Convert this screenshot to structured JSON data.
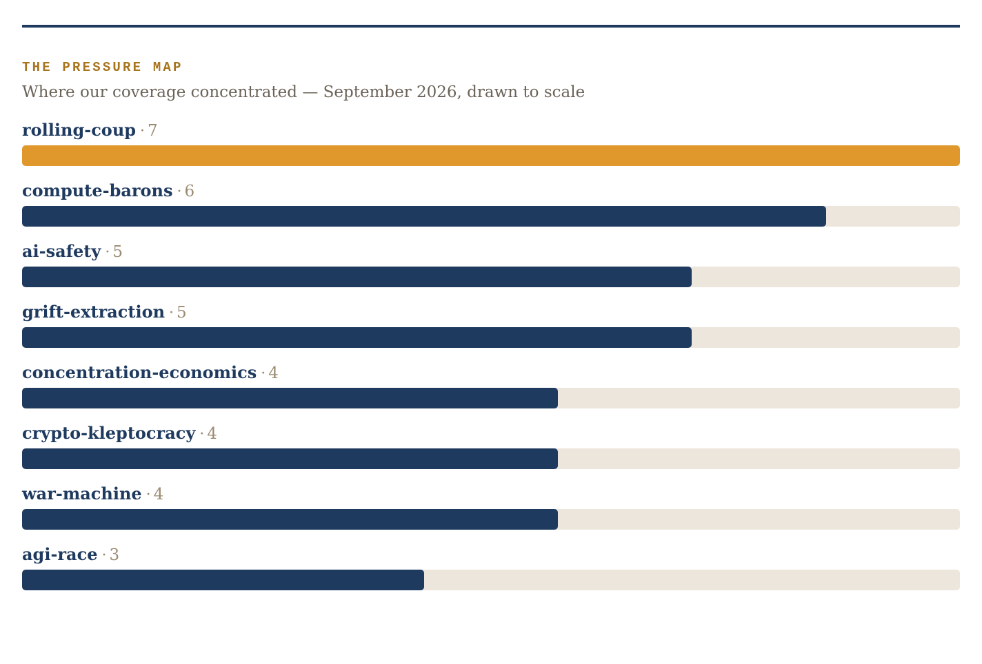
{
  "header": {
    "kicker": "THE PRESSURE MAP",
    "subtitle": "Where our coverage concentrated — September 2026, drawn to scale"
  },
  "colors": {
    "rule": "#1f3a5f",
    "kicker": "#a8741c",
    "bar_default": "#1f3a5f",
    "bar_highlight": "#e0982c",
    "track": "#ede6dc",
    "count": "#9a8a70"
  },
  "chart_data": {
    "type": "bar",
    "orientation": "horizontal",
    "title": "THE PRESSURE MAP",
    "subtitle": "Where our coverage concentrated — September 2026, drawn to scale",
    "categories": [
      "rolling-coup",
      "compute-barons",
      "ai-safety",
      "grift-extraction",
      "concentration-economics",
      "crypto-kleptocracy",
      "war-machine",
      "agi-race"
    ],
    "values": [
      7,
      6,
      5,
      5,
      4,
      4,
      4,
      3
    ],
    "xlim": [
      0,
      7
    ],
    "highlight_index": 0,
    "grid": false,
    "legend": "none"
  }
}
